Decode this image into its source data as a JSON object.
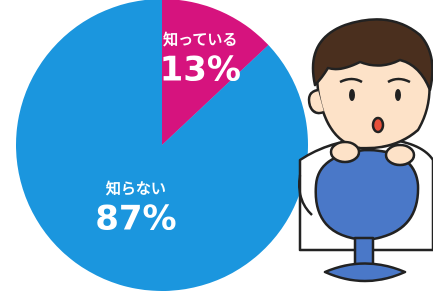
{
  "chart_data": {
    "type": "pie",
    "categories": [
      "知っている",
      "知らない"
    ],
    "values": [
      13,
      87
    ],
    "value_labels": [
      "13%",
      "87%"
    ],
    "colors": [
      "#d6137e",
      "#1b96de"
    ]
  }
}
